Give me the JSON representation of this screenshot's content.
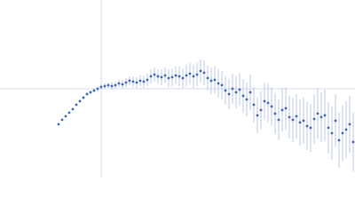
{
  "chart_data": {
    "type": "scatter",
    "x": [
      -0.48,
      -0.44,
      -0.4,
      -0.36,
      -0.32,
      -0.28,
      -0.24,
      -0.2,
      -0.16,
      -0.12,
      -0.08,
      -0.04,
      0,
      0.04,
      0.08,
      0.12,
      0.16,
      0.2,
      0.24,
      0.28,
      0.32,
      0.36,
      0.4,
      0.44,
      0.48,
      0.52,
      0.56,
      0.6,
      0.64,
      0.68,
      0.72,
      0.76,
      0.8,
      0.84,
      0.88,
      0.92,
      0.96,
      1,
      1.04,
      1.08,
      1.12,
      1.16,
      1.2,
      1.24,
      1.28,
      1.32,
      1.36,
      1.4,
      1.44,
      1.48,
      1.52,
      1.56,
      1.6,
      1.64,
      1.68,
      1.72,
      1.76,
      1.8,
      1.84,
      1.88,
      1.92,
      1.96,
      2,
      2.04,
      2.08,
      2.12,
      2.16,
      2.2,
      2.24,
      2.28,
      2.32,
      2.36,
      2.4,
      2.44,
      2.48,
      2.52,
      2.56,
      2.6,
      2.64,
      2.68,
      2.72,
      2.76,
      2.8,
      2.84
    ],
    "values": [
      -0.4,
      -0.35,
      -0.31,
      -0.27,
      -0.23,
      -0.18,
      -0.14,
      -0.1,
      -0.06,
      -0.04,
      -0.02,
      0,
      0.02,
      0.03,
      0.04,
      0.03,
      0.04,
      0.06,
      0.05,
      0.07,
      0.09,
      0.08,
      0.07,
      0.09,
      0.08,
      0.1,
      0.14,
      0.16,
      0.14,
      0.13,
      0.15,
      0.12,
      0.13,
      0.15,
      0.14,
      0.12,
      0.15,
      0.17,
      0.14,
      0.16,
      0.2,
      0.18,
      0.12,
      0.09,
      0.1,
      0.06,
      0.04,
      -0.02,
      -0.06,
      0,
      -0.04,
      -0.01,
      -0.08,
      -0.12,
      -0.04,
      -0.18,
      -0.3,
      -0.24,
      -0.14,
      -0.16,
      -0.2,
      -0.28,
      -0.35,
      -0.24,
      -0.22,
      -0.32,
      -0.35,
      -0.31,
      -0.38,
      -0.36,
      -0.42,
      -0.44,
      -0.34,
      -0.28,
      -0.32,
      -0.3,
      -0.44,
      -0.5,
      -0.36,
      -0.58,
      -0.5,
      -0.46,
      -0.4,
      -0.6
    ],
    "errors": [
      0.01,
      0.01,
      0.01,
      0.01,
      0.01,
      0.01,
      0.02,
      0.02,
      0.02,
      0.02,
      0.02,
      0.03,
      0.03,
      0.03,
      0.03,
      0.04,
      0.04,
      0.04,
      0.05,
      0.05,
      0.05,
      0.06,
      0.06,
      0.06,
      0.07,
      0.07,
      0.08,
      0.08,
      0.08,
      0.09,
      0.09,
      0.1,
      0.1,
      0.1,
      0.11,
      0.11,
      0.12,
      0.12,
      0.13,
      0.13,
      0.13,
      0.14,
      0.14,
      0.15,
      0.15,
      0.16,
      0.16,
      0.16,
      0.17,
      0.17,
      0.18,
      0.18,
      0.19,
      0.19,
      0.2,
      0.2,
      0.2,
      0.21,
      0.21,
      0.22,
      0.22,
      0.23,
      0.23,
      0.24,
      0.24,
      0.24,
      0.25,
      0.25,
      0.26,
      0.26,
      0.27,
      0.27,
      0.28,
      0.28,
      0.28,
      0.29,
      0.29,
      0.3,
      0.3,
      0.31,
      0.31,
      0.32,
      0.32,
      0.33
    ],
    "color": "#3a64c8",
    "error_color": "#aabde6",
    "xlim": [
      -1.14,
      2.86
    ],
    "ylim": [
      -1,
      1
    ]
  }
}
